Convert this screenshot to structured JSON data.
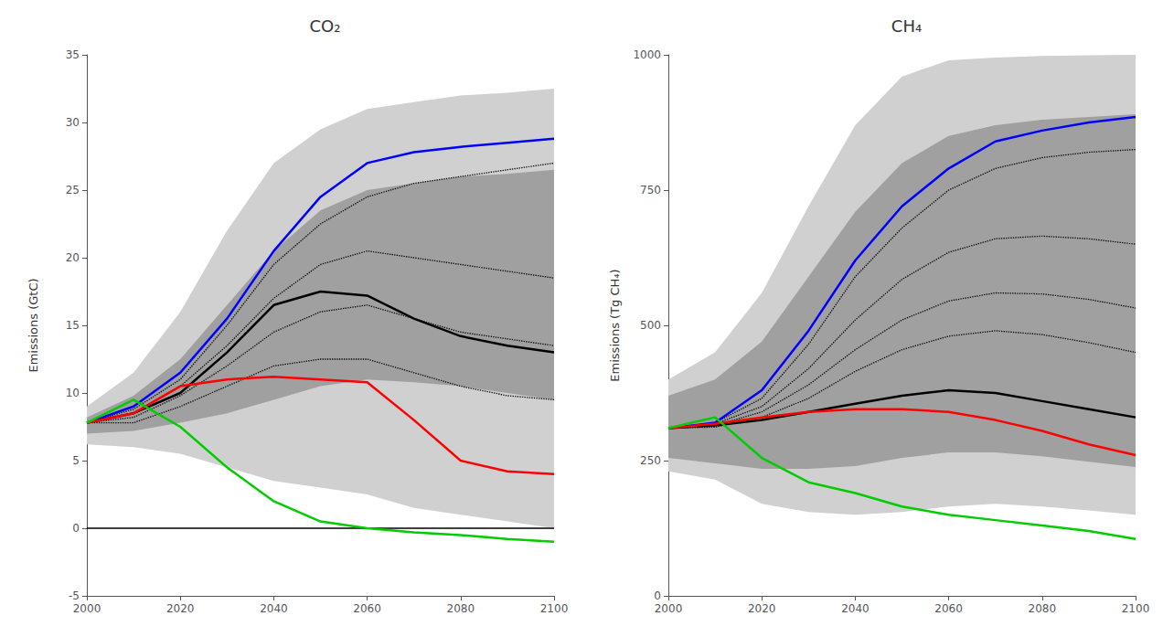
{
  "chart_data": [
    {
      "type": "line",
      "title": "CO₂",
      "ylabel": "Emissions (GtC)",
      "x": [
        2000,
        2010,
        2020,
        2030,
        2040,
        2050,
        2060,
        2070,
        2080,
        2090,
        2100
      ],
      "xlim": [
        2000,
        2100
      ],
      "xticks": [
        2000,
        2020,
        2040,
        2060,
        2080,
        2100
      ],
      "ylim": [
        -5,
        35
      ],
      "yticks": [
        -5,
        0,
        5,
        10,
        15,
        20,
        25,
        30,
        35
      ],
      "grid": false,
      "hline": 0,
      "series": [
        {
          "type": "band",
          "color": "#d0d0d0",
          "lower": [
            6.2,
            6.0,
            5.5,
            4.5,
            3.5,
            3.0,
            2.5,
            1.5,
            1.0,
            0.5,
            0.0
          ],
          "upper": [
            9.0,
            11.5,
            16.0,
            22.0,
            27.0,
            29.5,
            31.0,
            31.5,
            32.0,
            32.2,
            32.5
          ]
        },
        {
          "type": "band",
          "color": "#a0a0a0",
          "lower": [
            7.0,
            7.2,
            7.8,
            8.5,
            9.5,
            10.5,
            11.0,
            10.8,
            10.5,
            10.0,
            9.5
          ],
          "upper": [
            8.2,
            9.8,
            12.5,
            16.5,
            20.5,
            23.5,
            25.0,
            25.5,
            26.0,
            26.2,
            26.5
          ]
        },
        {
          "type": "line",
          "line_style": "dotted",
          "color": "#000000",
          "values": [
            7.8,
            8.8,
            11.0,
            15.0,
            19.5,
            22.5,
            24.5,
            25.5,
            26.0,
            26.5,
            27.0
          ]
        },
        {
          "type": "line",
          "line_style": "dotted",
          "color": "#000000",
          "values": [
            7.8,
            8.5,
            10.5,
            13.5,
            17.0,
            19.5,
            20.5,
            20.0,
            19.5,
            19.0,
            18.5
          ]
        },
        {
          "type": "line",
          "line_style": "dotted",
          "color": "#000000",
          "values": [
            7.8,
            8.2,
            9.8,
            12.0,
            14.5,
            16.0,
            16.5,
            15.5,
            14.5,
            14.0,
            13.5
          ]
        },
        {
          "type": "line",
          "line_style": "dotted",
          "color": "#000000",
          "values": [
            7.8,
            7.8,
            9.0,
            10.5,
            12.0,
            12.5,
            12.5,
            11.5,
            10.5,
            9.8,
            9.5
          ]
        },
        {
          "type": "line",
          "line_style": "solid",
          "color": "#0000ff",
          "values": [
            7.8,
            9.0,
            11.5,
            15.5,
            20.5,
            24.5,
            27.0,
            27.8,
            28.2,
            28.5,
            28.8
          ]
        },
        {
          "type": "line",
          "line_style": "solid",
          "color": "#000000",
          "values": [
            7.8,
            8.5,
            10.0,
            13.0,
            16.5,
            17.5,
            17.2,
            15.5,
            14.2,
            13.5,
            13.0
          ]
        },
        {
          "type": "line",
          "line_style": "solid",
          "color": "#ff0000",
          "values": [
            7.8,
            8.5,
            10.5,
            11.0,
            11.2,
            11.0,
            10.8,
            8.0,
            5.0,
            4.2,
            4.0
          ]
        },
        {
          "type": "line",
          "line_style": "solid",
          "color": "#00cc00",
          "values": [
            7.8,
            9.5,
            7.5,
            4.5,
            2.0,
            0.5,
            0.0,
            -0.3,
            -0.5,
            -0.8,
            -1.0
          ]
        }
      ]
    },
    {
      "type": "line",
      "title": "CH₄",
      "ylabel": "Emissions (Tg CH₄)",
      "x": [
        2000,
        2010,
        2020,
        2030,
        2040,
        2050,
        2060,
        2070,
        2080,
        2090,
        2100
      ],
      "xlim": [
        2000,
        2100
      ],
      "xticks": [
        2000,
        2020,
        2040,
        2060,
        2080,
        2100
      ],
      "ylim": [
        0,
        1000
      ],
      "yticks": [
        0,
        250,
        500,
        750,
        1000
      ],
      "grid": false,
      "series": [
        {
          "type": "band",
          "color": "#d0d0d0",
          "lower": [
            230,
            215,
            170,
            155,
            150,
            155,
            165,
            170,
            165,
            158,
            150
          ],
          "upper": [
            400,
            450,
            560,
            720,
            870,
            960,
            990,
            995,
            998,
            999,
            1000
          ]
        },
        {
          "type": "band",
          "color": "#a0a0a0",
          "lower": [
            255,
            245,
            235,
            235,
            240,
            255,
            265,
            265,
            258,
            248,
            238
          ],
          "upper": [
            370,
            400,
            470,
            590,
            710,
            800,
            850,
            870,
            880,
            885,
            890
          ]
        },
        {
          "type": "line",
          "line_style": "dotted",
          "color": "#000000",
          "values": [
            310,
            320,
            365,
            465,
            590,
            680,
            750,
            790,
            810,
            820,
            825
          ]
        },
        {
          "type": "line",
          "line_style": "dotted",
          "color": "#000000",
          "values": [
            310,
            318,
            350,
            420,
            510,
            585,
            635,
            660,
            665,
            660,
            650
          ]
        },
        {
          "type": "line",
          "line_style": "dotted",
          "color": "#000000",
          "values": [
            310,
            315,
            340,
            390,
            455,
            510,
            545,
            560,
            558,
            548,
            532
          ]
        },
        {
          "type": "line",
          "line_style": "dotted",
          "color": "#000000",
          "values": [
            310,
            312,
            330,
            365,
            415,
            455,
            480,
            490,
            483,
            468,
            450
          ]
        },
        {
          "type": "line",
          "line_style": "solid",
          "color": "#0000ff",
          "values": [
            310,
            320,
            380,
            490,
            620,
            720,
            790,
            840,
            860,
            875,
            885
          ]
        },
        {
          "type": "line",
          "line_style": "solid",
          "color": "#000000",
          "values": [
            310,
            315,
            325,
            340,
            355,
            370,
            380,
            375,
            360,
            345,
            330
          ]
        },
        {
          "type": "line",
          "line_style": "solid",
          "color": "#ff0000",
          "values": [
            310,
            318,
            330,
            340,
            345,
            345,
            340,
            325,
            305,
            280,
            260
          ]
        },
        {
          "type": "line",
          "line_style": "solid",
          "color": "#00cc00",
          "values": [
            310,
            330,
            255,
            210,
            190,
            165,
            150,
            140,
            130,
            120,
            105
          ]
        }
      ]
    }
  ]
}
